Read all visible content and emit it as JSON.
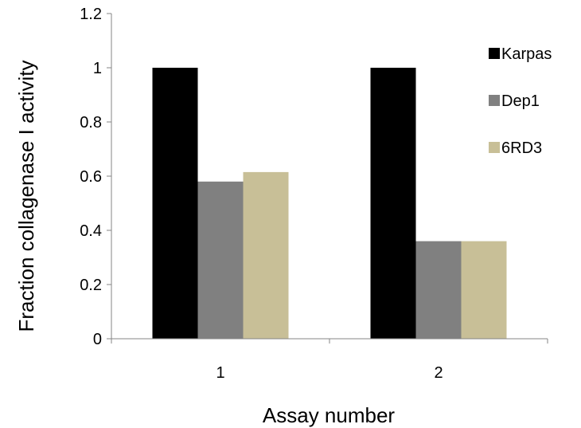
{
  "chart_data": {
    "type": "bar",
    "title": "",
    "xlabel": "Assay number",
    "ylabel": "Fraction collagenase I activity",
    "categories": [
      "1",
      "2"
    ],
    "series": [
      {
        "name": "Karpas",
        "values": [
          1.0,
          1.0
        ],
        "color": "#000000"
      },
      {
        "name": "Dep1",
        "values": [
          0.58,
          0.36
        ],
        "color": "#808080"
      },
      {
        "name": "6RD3",
        "values": [
          0.615,
          0.36
        ],
        "color": "#c8bf97"
      }
    ],
    "ylim": [
      0,
      1.2
    ],
    "yticks": [
      "0",
      "0.2",
      "0.4",
      "0.6",
      "0.8",
      "1",
      "1.2"
    ],
    "grid": false,
    "legend_position": "right"
  }
}
